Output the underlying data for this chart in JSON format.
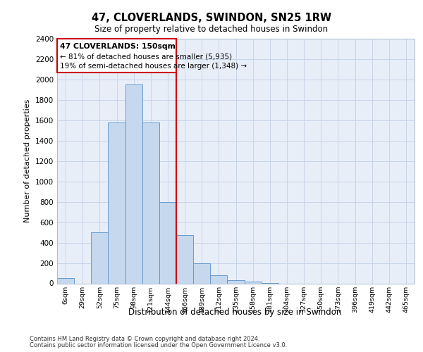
{
  "title_line1": "47, CLOVERLANDS, SWINDON, SN25 1RW",
  "title_line2": "Size of property relative to detached houses in Swindon",
  "xlabel": "Distribution of detached houses by size in Swindon",
  "ylabel": "Number of detached properties",
  "footer_line1": "Contains HM Land Registry data © Crown copyright and database right 2024.",
  "footer_line2": "Contains public sector information licensed under the Open Government Licence v3.0.",
  "annotation_line1": "47 CLOVERLANDS: 150sqm",
  "annotation_line2": "← 81% of detached houses are smaller (5,935)",
  "annotation_line3": "19% of semi-detached houses are larger (1,348) →",
  "categories": [
    "6sqm",
    "29sqm",
    "52sqm",
    "75sqm",
    "98sqm",
    "121sqm",
    "144sqm",
    "166sqm",
    "189sqm",
    "212sqm",
    "235sqm",
    "258sqm",
    "281sqm",
    "304sqm",
    "327sqm",
    "350sqm",
    "373sqm",
    "396sqm",
    "419sqm",
    "442sqm",
    "465sqm"
  ],
  "values": [
    50,
    0,
    500,
    1580,
    1950,
    1580,
    800,
    475,
    200,
    80,
    30,
    20,
    5,
    0,
    0,
    0,
    0,
    0,
    0,
    0,
    0
  ],
  "bar_color": "#c5d8ee",
  "bar_edge_color": "#6699cc",
  "vline_color": "#cc0000",
  "annotation_box_edge_color": "#cc0000",
  "ylim": [
    0,
    2400
  ],
  "yticks": [
    0,
    200,
    400,
    600,
    800,
    1000,
    1200,
    1400,
    1600,
    1800,
    2000,
    2200,
    2400
  ],
  "grid_color": "#c8d4e8",
  "plot_bg_color": "#e8eef8"
}
